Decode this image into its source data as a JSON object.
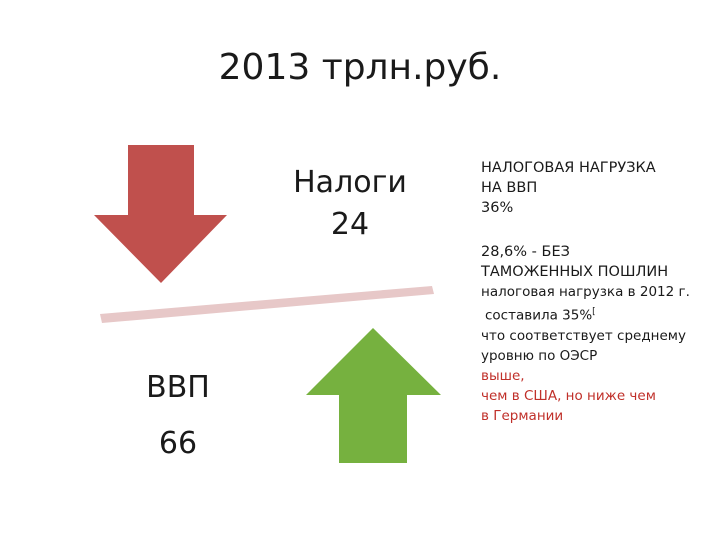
{
  "title": "2013 трлн.руб.",
  "taxes": {
    "label": "Налоги",
    "value": "24"
  },
  "gdp": {
    "label": "ВВП",
    "value": "66"
  },
  "colors": {
    "down_arrow": "#c0504d",
    "up_arrow": "#76b13f",
    "beam": "#e7c8c8",
    "accent_text": "#c0302a"
  },
  "side_text": {
    "block1": [
      "НАЛОГОВАЯ НАГРУЗКА",
      "НА ВВП",
      "36%"
    ],
    "block2": {
      "line1": "28,6% - БЕЗ",
      "line2": "ТАМОЖЕННЫХ ПОШЛИН",
      "line3": "налоговая нагрузка в 2012 г.",
      "line4": "составила 35%",
      "line4_mark": "[",
      "line5": "что соответствует среднему",
      "line6": "уровню по ОЭСР",
      "red1": "выше,",
      "red2": "чем в США, но ниже чем",
      "red3": "в Германии"
    }
  }
}
